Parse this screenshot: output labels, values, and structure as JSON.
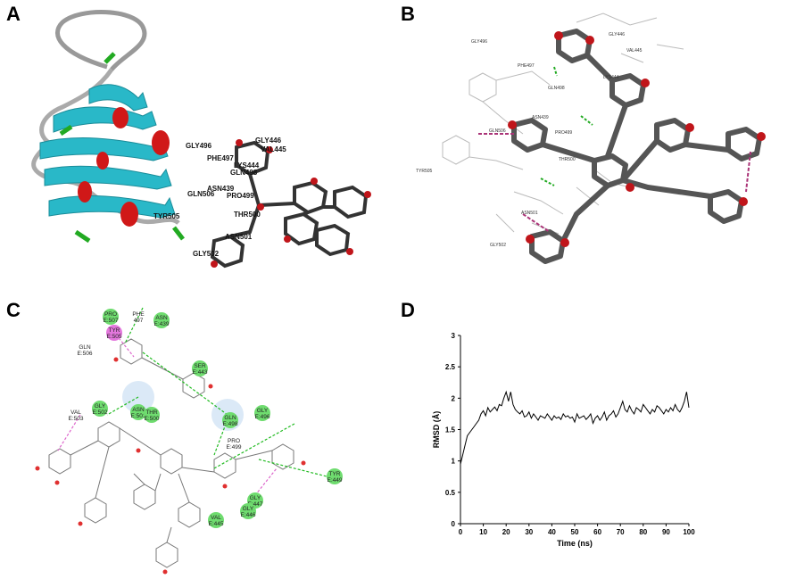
{
  "panels": {
    "a": {
      "label": "A",
      "residues": [
        "GLY446",
        "VAL445",
        "GLY496",
        "PHE497",
        "LYS444",
        "GLN498",
        "ASN439",
        "PRO499",
        "GLN506",
        "TYR505",
        "THR500",
        "ASN501",
        "GLY502"
      ]
    },
    "b": {
      "label": "B",
      "residues": [
        "GLY496",
        "GLY446",
        "VAL445",
        "PHE497",
        "LYS444",
        "GLN498",
        "ASN439",
        "GLN506",
        "PRO499",
        "TYR505",
        "THR500",
        "ASN501",
        "GLY502"
      ]
    },
    "c": {
      "label": "C",
      "residues": [
        {
          "name": "PRO",
          "chain": "E:507",
          "color": "green"
        },
        {
          "name": "PHE",
          "chain": "497",
          "color": "none"
        },
        {
          "name": "ASN",
          "chain": "E:439",
          "color": "green"
        },
        {
          "name": "TYR",
          "chain": "E:505",
          "color": "pink"
        },
        {
          "name": "GLN",
          "chain": "E:506",
          "color": "none"
        },
        {
          "name": "SER",
          "chain": "E:443",
          "color": "green"
        },
        {
          "name": "ASN",
          "chain": "E:501",
          "color": "green"
        },
        {
          "name": "GLY",
          "chain": "E:502",
          "color": "green"
        },
        {
          "name": "VAL",
          "chain": "E:503",
          "color": "none"
        },
        {
          "name": "THR",
          "chain": "E:500",
          "color": "green"
        },
        {
          "name": "GLN",
          "chain": "E:498",
          "color": "green"
        },
        {
          "name": "GLY",
          "chain": "E:496",
          "color": "green"
        },
        {
          "name": "PRO",
          "chain": "E:499",
          "color": "none"
        },
        {
          "name": "TYR",
          "chain": "E:449",
          "color": "green"
        },
        {
          "name": "GLY",
          "chain": "E:447",
          "color": "green"
        },
        {
          "name": "GLY",
          "chain": "E:446",
          "color": "green"
        },
        {
          "name": "VAL",
          "chain": "E:445",
          "color": "green"
        }
      ]
    },
    "d": {
      "label": "D"
    }
  },
  "chart_data": {
    "type": "line",
    "xlabel": "Time (ns)",
    "ylabel": "RMSD (Å)",
    "xlim": [
      0,
      100
    ],
    "ylim": [
      0,
      3
    ],
    "xticks": [
      0,
      10,
      20,
      30,
      40,
      50,
      60,
      70,
      80,
      90,
      100
    ],
    "yticks": [
      0,
      0.5,
      1,
      1.5,
      2,
      2.5,
      3
    ],
    "ytick_labels": [
      "0",
      "0.5",
      "1",
      "1.5",
      "2",
      "2.5",
      "3"
    ],
    "grid": false,
    "series": [
      {
        "color": "#000000",
        "x": [
          0,
          1,
          2,
          3,
          4,
          5,
          6,
          7,
          8,
          9,
          10,
          11,
          12,
          13,
          14,
          15,
          16,
          17,
          18,
          19,
          20,
          21,
          22,
          23,
          24,
          25,
          26,
          27,
          28,
          29,
          30,
          31,
          32,
          33,
          34,
          35,
          36,
          37,
          38,
          39,
          40,
          41,
          42,
          43,
          44,
          45,
          46,
          47,
          48,
          49,
          50,
          51,
          52,
          53,
          54,
          55,
          56,
          57,
          58,
          59,
          60,
          61,
          62,
          63,
          64,
          65,
          66,
          67,
          68,
          69,
          70,
          71,
          72,
          73,
          74,
          75,
          76,
          77,
          78,
          79,
          80,
          81,
          82,
          83,
          84,
          85,
          86,
          87,
          88,
          89,
          90,
          91,
          92,
          93,
          94,
          95,
          96,
          97,
          98,
          99,
          100
        ],
        "values": [
          0.95,
          1.1,
          1.25,
          1.4,
          1.45,
          1.5,
          1.55,
          1.6,
          1.65,
          1.75,
          1.8,
          1.72,
          1.85,
          1.78,
          1.82,
          1.86,
          1.8,
          1.9,
          1.88,
          2.0,
          2.1,
          1.95,
          2.1,
          1.9,
          1.82,
          1.78,
          1.75,
          1.8,
          1.7,
          1.72,
          1.78,
          1.68,
          1.75,
          1.7,
          1.65,
          1.72,
          1.7,
          1.68,
          1.75,
          1.7,
          1.65,
          1.72,
          1.68,
          1.7,
          1.66,
          1.75,
          1.7,
          1.72,
          1.68,
          1.7,
          1.62,
          1.75,
          1.68,
          1.7,
          1.72,
          1.66,
          1.7,
          1.75,
          1.6,
          1.68,
          1.72,
          1.65,
          1.7,
          1.78,
          1.65,
          1.72,
          1.75,
          1.8,
          1.7,
          1.75,
          1.85,
          1.95,
          1.82,
          1.78,
          1.88,
          1.8,
          1.75,
          1.85,
          1.82,
          1.78,
          1.9,
          1.85,
          1.8,
          1.75,
          1.82,
          1.78,
          1.88,
          1.85,
          1.8,
          1.75,
          1.82,
          1.78,
          1.85,
          1.8,
          1.9,
          1.82,
          1.78,
          1.85,
          1.95,
          2.1,
          1.85
        ]
      }
    ]
  }
}
